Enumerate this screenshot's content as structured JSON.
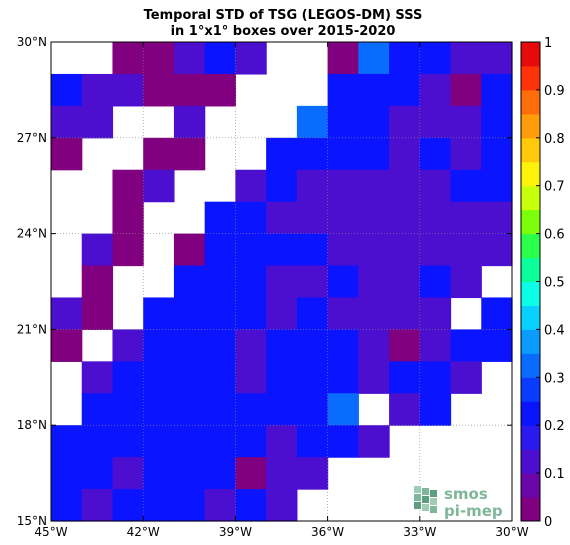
{
  "chart_data": {
    "type": "heatmap",
    "title_lines": [
      "Temporal STD of TSG (LEGOS-DM) SSS",
      "in 1°x1° boxes over 2015-2020"
    ],
    "x_ticks": [
      {
        "value": -45,
        "label": "45°W"
      },
      {
        "value": -42,
        "label": "42°W"
      },
      {
        "value": -39,
        "label": "39°W"
      },
      {
        "value": -36,
        "label": "36°W"
      },
      {
        "value": -33,
        "label": "33°W"
      },
      {
        "value": -30,
        "label": "30°W"
      }
    ],
    "y_ticks": [
      {
        "value": 15,
        "label": "15°N"
      },
      {
        "value": 18,
        "label": "18°N"
      },
      {
        "value": 21,
        "label": "21°N"
      },
      {
        "value": 24,
        "label": "24°N"
      },
      {
        "value": 27,
        "label": "27°N"
      },
      {
        "value": 30,
        "label": "30°N"
      }
    ],
    "xlim": [
      -45,
      -30
    ],
    "ylim": [
      15,
      30
    ],
    "grid": true,
    "colorbar": {
      "range": [
        0,
        1
      ],
      "step": 0.05,
      "ticks": [
        0,
        0.1,
        0.2,
        0.3,
        0.4,
        0.5,
        0.6,
        0.7,
        0.8,
        0.9,
        1
      ],
      "tick_labels": [
        "0",
        "0.1",
        "0.2",
        "0.3",
        "0.4",
        "0.5",
        "0.6",
        "0.7",
        "0.8",
        "0.9",
        "1"
      ],
      "colors": [
        "#800080",
        "#6a05a8",
        "#4c0fd0",
        "#2a1af0",
        "#0a14ff",
        "#0a3cff",
        "#0a6cff",
        "#0a9cff",
        "#0ad0ff",
        "#0affe6",
        "#0aff9c",
        "#2aff4c",
        "#7cff0a",
        "#c8ff0a",
        "#fff20a",
        "#ffc80a",
        "#ff9c0a",
        "#ff6c0a",
        "#ff330a",
        "#e60a0a"
      ]
    },
    "lon_start": -45,
    "lat_start": 30,
    "grid_values": [
      [
        null,
        null,
        0.0,
        0.0,
        0.1,
        0.2,
        0.1,
        null,
        null,
        0.0,
        0.3,
        0.2,
        0.2,
        0.1,
        0.1
      ],
      [
        0.2,
        0.1,
        0.1,
        0.0,
        0.0,
        0.0,
        null,
        null,
        null,
        0.2,
        0.2,
        0.2,
        0.1,
        0.0,
        0.2
      ],
      [
        0.1,
        0.1,
        null,
        null,
        0.1,
        null,
        null,
        null,
        0.3,
        0.2,
        0.2,
        0.1,
        0.1,
        0.1,
        0.2
      ],
      [
        0.0,
        null,
        null,
        0.0,
        0.0,
        null,
        null,
        0.2,
        0.2,
        0.2,
        0.2,
        0.1,
        0.2,
        0.1,
        0.2
      ],
      [
        null,
        null,
        0.0,
        0.1,
        null,
        null,
        0.1,
        0.2,
        0.1,
        0.1,
        0.1,
        0.1,
        0.1,
        0.2,
        0.2
      ],
      [
        null,
        null,
        0.0,
        null,
        null,
        0.2,
        0.2,
        0.1,
        0.1,
        0.1,
        0.1,
        0.1,
        0.1,
        0.1,
        0.1
      ],
      [
        null,
        0.1,
        0.0,
        null,
        0.0,
        0.2,
        0.2,
        0.2,
        0.2,
        0.1,
        0.1,
        0.1,
        0.1,
        0.1,
        0.1
      ],
      [
        null,
        0.0,
        null,
        null,
        0.2,
        0.2,
        0.2,
        0.1,
        0.1,
        0.2,
        0.1,
        0.1,
        0.2,
        0.1,
        null
      ],
      [
        0.1,
        0.0,
        null,
        0.2,
        0.2,
        0.2,
        0.2,
        0.1,
        0.2,
        0.1,
        0.1,
        0.1,
        0.1,
        null,
        0.2
      ],
      [
        0.0,
        null,
        0.1,
        0.2,
        0.2,
        0.2,
        0.1,
        0.2,
        0.2,
        0.2,
        0.1,
        0.0,
        0.1,
        0.2,
        0.2
      ],
      [
        null,
        0.1,
        0.2,
        0.2,
        0.2,
        0.2,
        0.1,
        0.2,
        0.2,
        0.2,
        0.1,
        0.2,
        0.2,
        0.1,
        null
      ],
      [
        null,
        0.2,
        0.2,
        0.2,
        0.2,
        0.2,
        0.2,
        0.2,
        0.2,
        0.3,
        null,
        0.1,
        0.2,
        null,
        null
      ],
      [
        0.2,
        0.2,
        0.2,
        0.2,
        0.2,
        0.2,
        0.2,
        0.1,
        0.2,
        0.2,
        0.1,
        null,
        null,
        null,
        null
      ],
      [
        0.2,
        0.2,
        0.1,
        0.2,
        0.2,
        0.2,
        0.0,
        0.1,
        0.1,
        null,
        null,
        null,
        null,
        null,
        null
      ],
      [
        0.2,
        0.1,
        0.2,
        0.2,
        0.2,
        0.1,
        0.2,
        0.1,
        null,
        null,
        null,
        null,
        null,
        null,
        null
      ]
    ]
  },
  "logo": {
    "line1": "smos",
    "line2": "pi-mep"
  }
}
